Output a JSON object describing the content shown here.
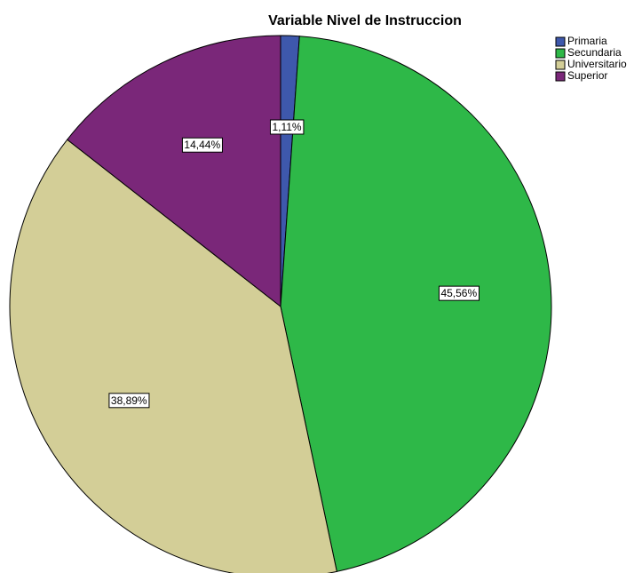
{
  "chart_data": {
    "type": "pie",
    "title": "Variable Nivel de Instruccion",
    "categories": [
      "Primaria",
      "Secundaria",
      "Universitario",
      "Superior"
    ],
    "values": [
      1.11,
      45.56,
      38.89,
      14.44
    ],
    "value_labels": [
      "1,11%",
      "45,56%",
      "38,89%",
      "14,44%"
    ],
    "colors": [
      "#3e58ac",
      "#2eb848",
      "#d3ce97",
      "#7a2779"
    ],
    "legend": "top-right"
  }
}
